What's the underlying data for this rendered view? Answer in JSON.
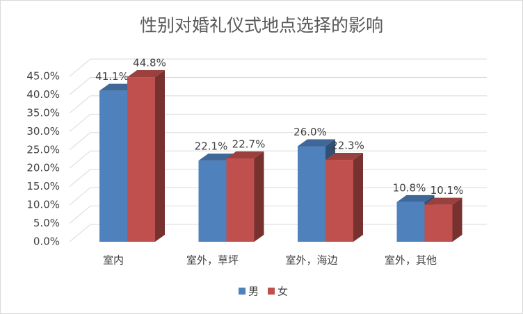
{
  "chart_data": {
    "type": "bar3d",
    "title": "性别对婚礼仪式地点选择的影响",
    "categories": [
      "室内",
      "室外，草坪",
      "室外，海边",
      "室外，其他"
    ],
    "series": [
      {
        "name": "男",
        "color": "#4f81bd",
        "values": [
          41.1,
          22.1,
          26.0,
          10.8
        ],
        "value_labels": [
          "41.1%",
          "22.1%",
          "26.0%",
          "10.8%"
        ]
      },
      {
        "name": "女",
        "color": "#c0504d",
        "values": [
          44.8,
          22.7,
          22.3,
          10.1
        ],
        "value_labels": [
          "44.8%",
          "22.7%",
          "22.3%",
          "10.1%"
        ]
      }
    ],
    "ylim": [
      0,
      45
    ],
    "yticks": [
      {
        "value": 0,
        "label": "0.0%"
      },
      {
        "value": 5,
        "label": "5.0%"
      },
      {
        "value": 10,
        "label": "10.0%"
      },
      {
        "value": 15,
        "label": "15.0%"
      },
      {
        "value": 20,
        "label": "20.0%"
      },
      {
        "value": 25,
        "label": "25.0%"
      },
      {
        "value": 30,
        "label": "30.0%"
      },
      {
        "value": 35,
        "label": "35.0%"
      },
      {
        "value": 40,
        "label": "40.0%"
      },
      {
        "value": 45,
        "label": "45.0%"
      }
    ],
    "grid": true,
    "legend": "bottom"
  }
}
